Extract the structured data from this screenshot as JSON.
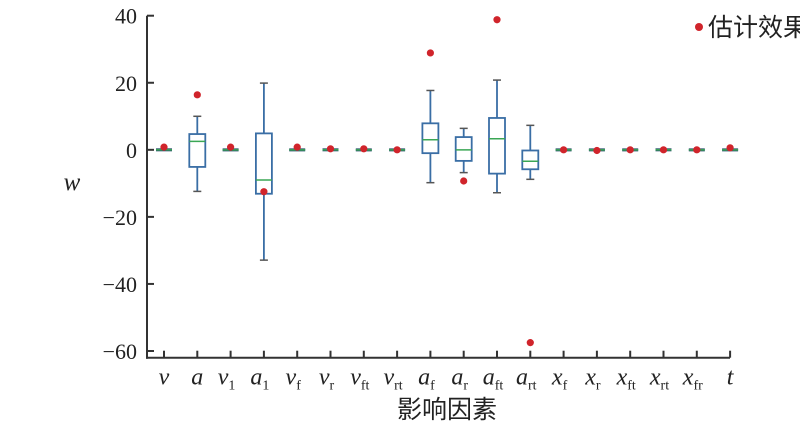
{
  "chart_data": {
    "type": "box",
    "title": "",
    "xlabel": "影响因素",
    "ylabel": "w",
    "ylim": [
      -62,
      40
    ],
    "yticks": [
      40,
      20,
      0,
      -20,
      -40,
      -60
    ],
    "ytick_labels": [
      "40",
      "20",
      "0",
      "−20",
      "−40",
      "−60"
    ],
    "grid": false,
    "legend": {
      "position": "top-right",
      "entries": [
        {
          "label": "估计效果",
          "color": "#d0242b",
          "marker": "dot"
        }
      ]
    },
    "colors": {
      "box": "#3a6ea5",
      "median": "#3aa655",
      "estimate": "#d0242b",
      "axis": "#333333"
    },
    "categories": [
      {
        "base": "v",
        "sub": ""
      },
      {
        "base": "a",
        "sub": ""
      },
      {
        "base": "v",
        "sub": "1"
      },
      {
        "base": "a",
        "sub": "1"
      },
      {
        "base": "v",
        "sub": "f"
      },
      {
        "base": "v",
        "sub": "r"
      },
      {
        "base": "v",
        "sub": "ft"
      },
      {
        "base": "v",
        "sub": "rt"
      },
      {
        "base": "a",
        "sub": "f"
      },
      {
        "base": "a",
        "sub": "r"
      },
      {
        "base": "a",
        "sub": "ft"
      },
      {
        "base": "a",
        "sub": "rt"
      },
      {
        "base": "x",
        "sub": "f"
      },
      {
        "base": "x",
        "sub": "r"
      },
      {
        "base": "x",
        "sub": "ft"
      },
      {
        "base": "x",
        "sub": "rt"
      },
      {
        "base": "x",
        "sub": "fr"
      },
      {
        "base": "t",
        "sub": ""
      }
    ],
    "boxes": [
      {
        "whislo": 0,
        "q1": 0,
        "med": 0,
        "q3": 0,
        "whishi": 0,
        "estimate": 0.8
      },
      {
        "whislo": -12.4,
        "q1": -5.1,
        "med": 2.5,
        "q3": 4.7,
        "whishi": 10,
        "estimate": 16.4
      },
      {
        "whislo": 0,
        "q1": 0,
        "med": 0,
        "q3": 0,
        "whishi": 0,
        "estimate": 0.8
      },
      {
        "whislo": -32.9,
        "q1": -13.1,
        "med": -9,
        "q3": 4.9,
        "whishi": 19.9,
        "estimate": -12.5
      },
      {
        "whislo": 0,
        "q1": 0,
        "med": 0,
        "q3": 0,
        "whishi": 0,
        "estimate": 0.8
      },
      {
        "whislo": 0,
        "q1": 0,
        "med": 0,
        "q3": 0,
        "whishi": 0,
        "estimate": 0.3
      },
      {
        "whislo": 0,
        "q1": 0,
        "med": 0,
        "q3": 0,
        "whishi": 0,
        "estimate": 0.3
      },
      {
        "whislo": 0,
        "q1": 0,
        "med": 0,
        "q3": 0,
        "whishi": 0,
        "estimate": 0
      },
      {
        "whislo": -9.8,
        "q1": -1,
        "med": 3,
        "q3": 7.9,
        "whishi": 17.7,
        "estimate": 28.9
      },
      {
        "whislo": -6.8,
        "q1": -3.3,
        "med": 0,
        "q3": 3.8,
        "whishi": 6.4,
        "estimate": -9.3
      },
      {
        "whislo": -12.8,
        "q1": -7.1,
        "med": 3.3,
        "q3": 9.5,
        "whishi": 20.8,
        "estimate": 38.8
      },
      {
        "whislo": -8.8,
        "q1": -5.8,
        "med": -3.4,
        "q3": -0.2,
        "whishi": 7.3,
        "estimate": -57.5
      },
      {
        "whislo": 0,
        "q1": 0,
        "med": 0,
        "q3": 0,
        "whishi": 0,
        "estimate": 0
      },
      {
        "whislo": 0,
        "q1": 0,
        "med": 0,
        "q3": 0,
        "whishi": 0,
        "estimate": -0.2
      },
      {
        "whislo": 0,
        "q1": 0,
        "med": 0,
        "q3": 0,
        "whishi": 0,
        "estimate": 0
      },
      {
        "whislo": 0,
        "q1": 0,
        "med": 0,
        "q3": 0,
        "whishi": 0,
        "estimate": 0
      },
      {
        "whislo": 0,
        "q1": 0,
        "med": 0,
        "q3": 0,
        "whishi": 0,
        "estimate": 0
      },
      {
        "whislo": 0,
        "q1": 0,
        "med": 0,
        "q3": 0,
        "whishi": 0,
        "estimate": 0.6
      }
    ]
  }
}
